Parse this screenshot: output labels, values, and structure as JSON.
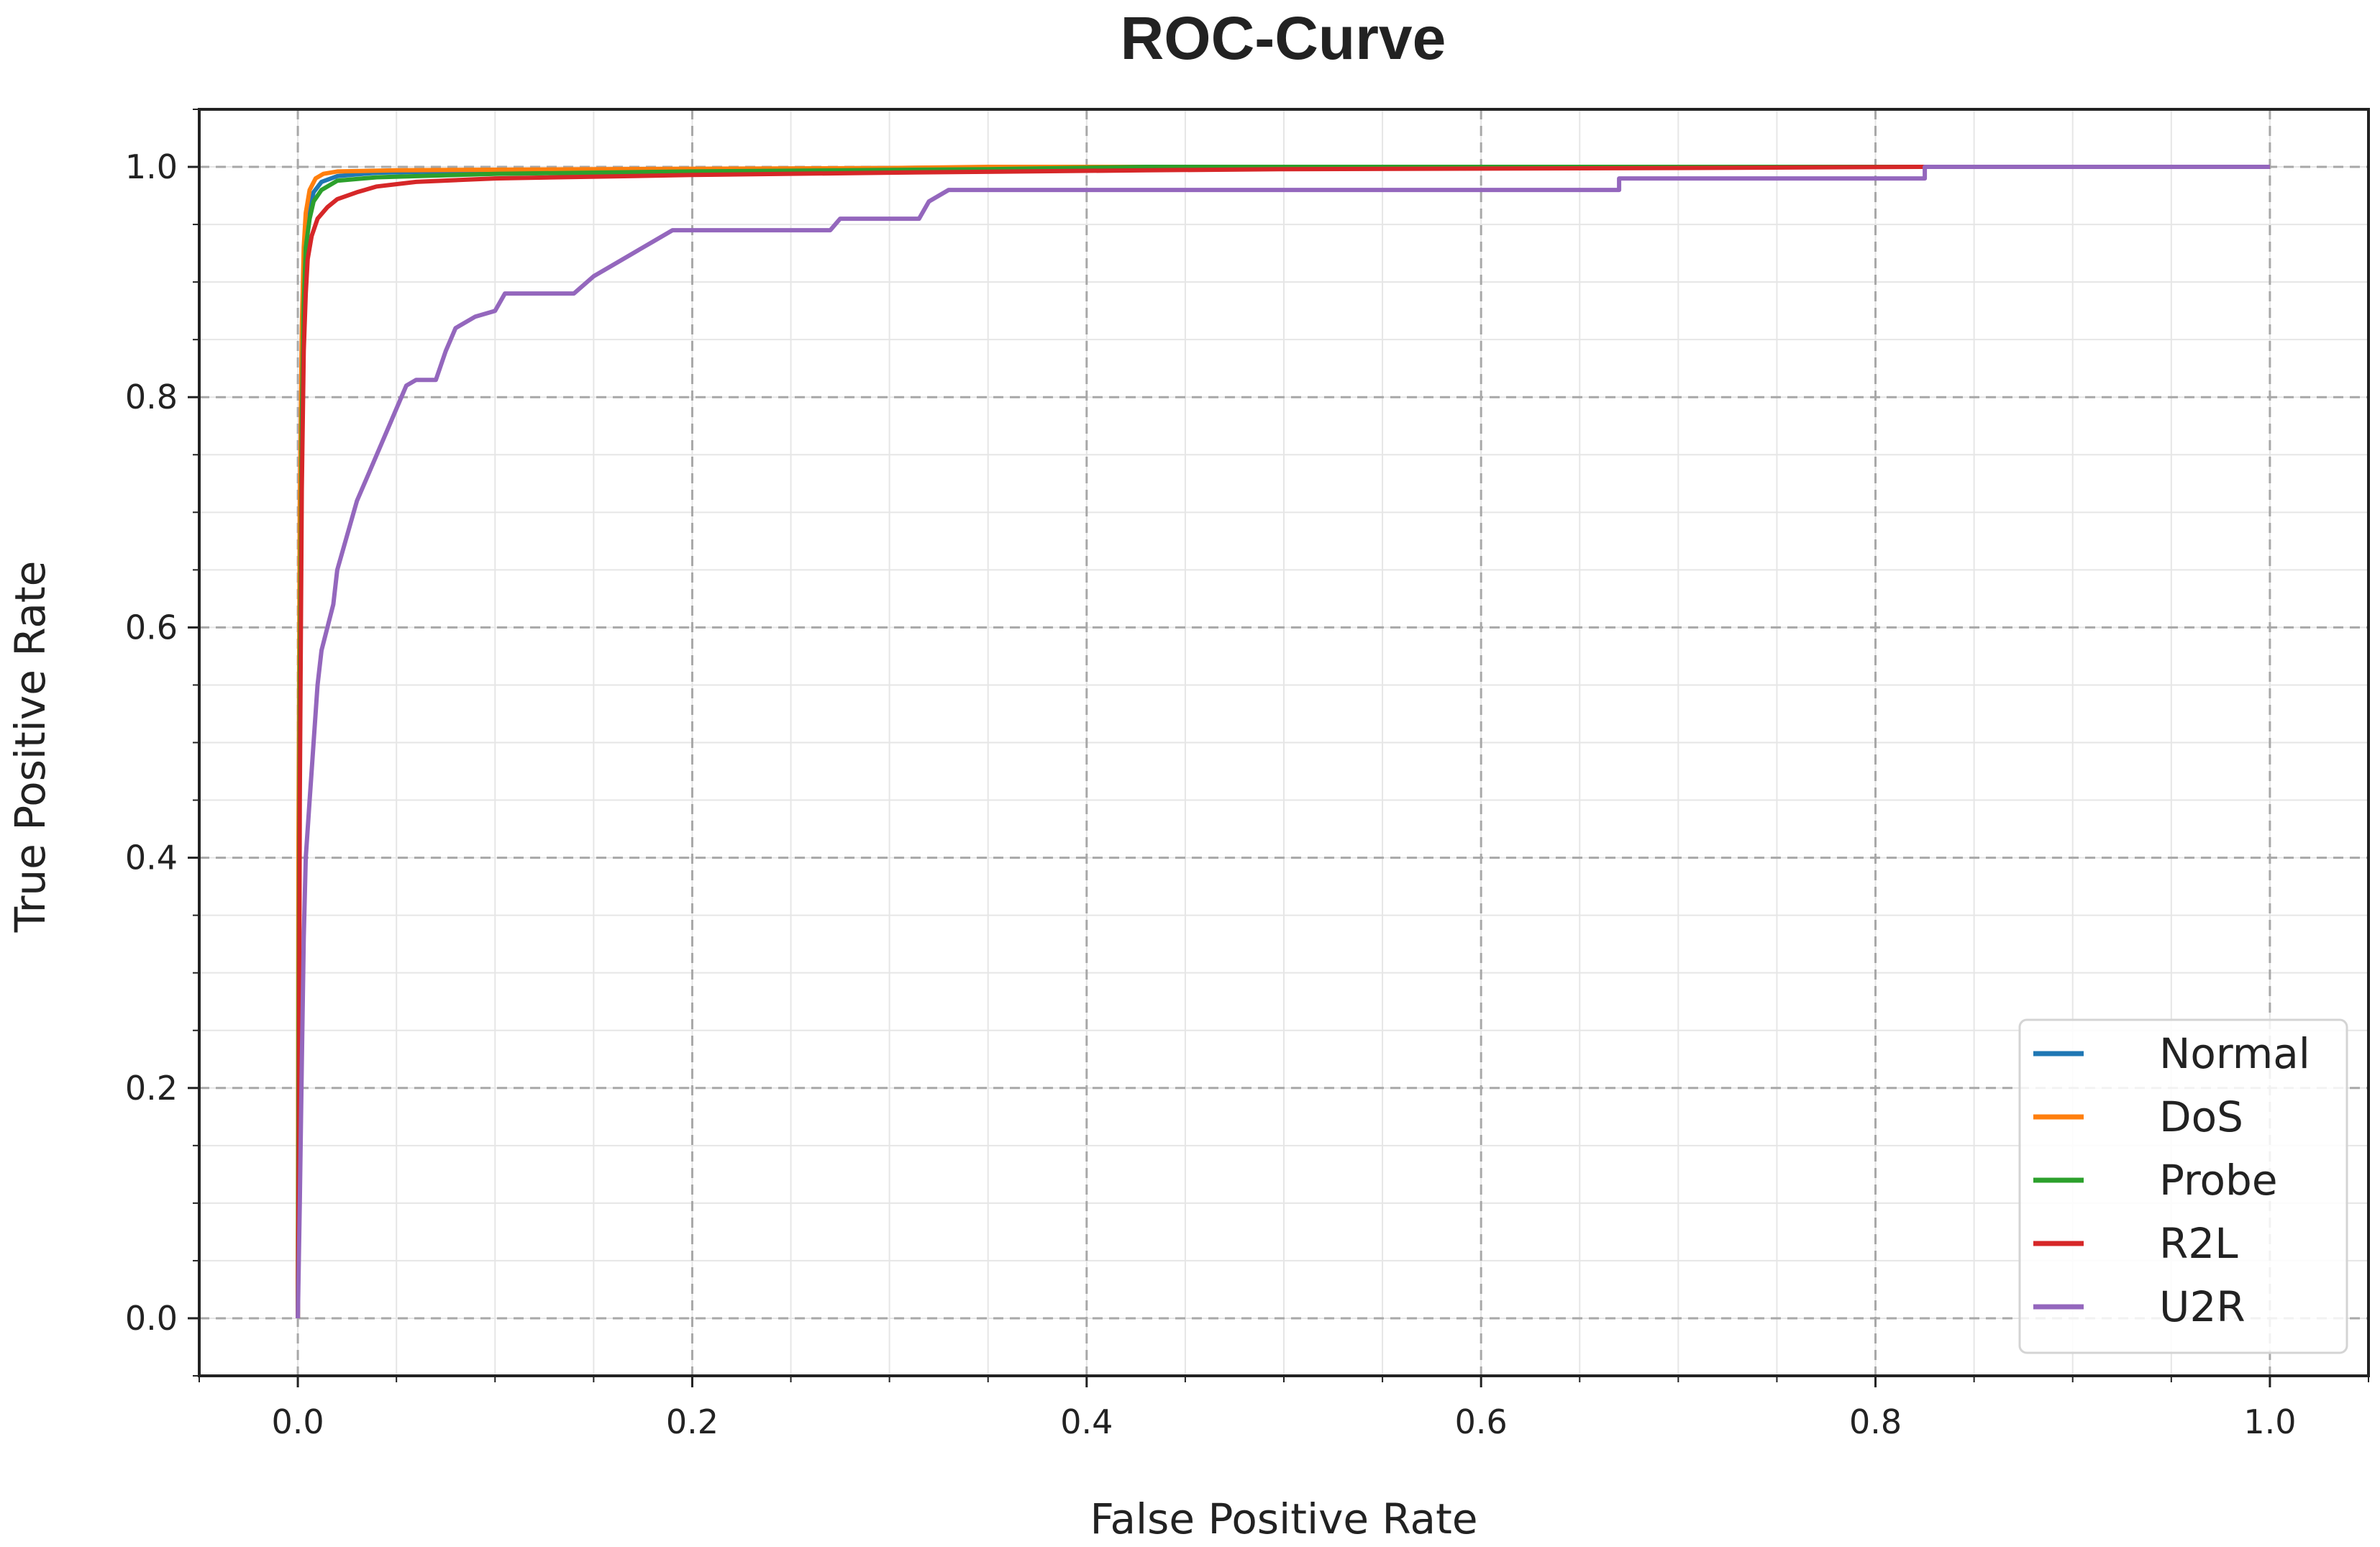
{
  "chart_data": {
    "type": "line",
    "title": "ROC-Curve",
    "xlabel": "False Positive Rate",
    "ylabel": "True Positive Rate",
    "xlim": [
      -0.05,
      1.05
    ],
    "ylim": [
      -0.05,
      1.05
    ],
    "xticks": [
      0.0,
      0.2,
      0.4,
      0.6,
      0.8,
      1.0
    ],
    "xtick_labels": [
      "0.0",
      "0.2",
      "0.4",
      "0.6",
      "0.8",
      "1.0"
    ],
    "yticks": [
      0.0,
      0.2,
      0.4,
      0.6,
      0.8,
      1.0
    ],
    "ytick_labels": [
      "0.0",
      "0.2",
      "0.4",
      "0.6",
      "0.8",
      "1.0"
    ],
    "grid": true,
    "legend_position": "lower-right",
    "series": [
      {
        "name": "Normal",
        "color": "#1f77b4",
        "x": [
          0.0,
          0.0005,
          0.001,
          0.002,
          0.003,
          0.004,
          0.006,
          0.008,
          0.012,
          0.02,
          0.04,
          0.1,
          0.2,
          0.3,
          0.4,
          1.0
        ],
        "y": [
          0.0,
          0.3,
          0.6,
          0.82,
          0.9,
          0.94,
          0.965,
          0.978,
          0.987,
          0.992,
          0.995,
          0.997,
          0.998,
          0.999,
          1.0,
          1.0
        ]
      },
      {
        "name": "DoS",
        "color": "#ff7f0e",
        "x": [
          0.0,
          0.0003,
          0.001,
          0.002,
          0.003,
          0.004,
          0.006,
          0.009,
          0.013,
          0.02,
          0.05,
          0.15,
          0.3,
          0.35,
          1.0
        ],
        "y": [
          0.0,
          0.4,
          0.7,
          0.86,
          0.93,
          0.96,
          0.98,
          0.99,
          0.994,
          0.996,
          0.997,
          0.998,
          0.999,
          1.0,
          1.0
        ]
      },
      {
        "name": "Probe",
        "color": "#2ca02c",
        "x": [
          0.0,
          0.0005,
          0.001,
          0.002,
          0.003,
          0.004,
          0.006,
          0.008,
          0.012,
          0.02,
          0.04,
          0.1,
          0.2,
          0.35,
          0.43,
          1.0
        ],
        "y": [
          0.0,
          0.3,
          0.55,
          0.78,
          0.88,
          0.93,
          0.955,
          0.97,
          0.98,
          0.988,
          0.991,
          0.994,
          0.996,
          0.998,
          1.0,
          1.0
        ]
      },
      {
        "name": "R2L",
        "color": "#d62728",
        "x": [
          0.0,
          0.0005,
          0.001,
          0.002,
          0.003,
          0.004,
          0.005,
          0.007,
          0.01,
          0.015,
          0.02,
          0.03,
          0.04,
          0.06,
          0.1,
          0.2,
          0.3,
          0.43,
          0.5,
          0.7,
          0.825,
          1.0
        ],
        "y": [
          0.0,
          0.15,
          0.45,
          0.72,
          0.84,
          0.89,
          0.92,
          0.94,
          0.955,
          0.965,
          0.972,
          0.978,
          0.983,
          0.987,
          0.99,
          0.993,
          0.995,
          0.997,
          0.998,
          0.999,
          1.0,
          1.0
        ]
      },
      {
        "name": "U2R",
        "color": "#9467bd",
        "x": [
          0.0,
          0.001,
          0.002,
          0.003,
          0.004,
          0.006,
          0.008,
          0.01,
          0.012,
          0.015,
          0.018,
          0.02,
          0.025,
          0.03,
          0.035,
          0.04,
          0.045,
          0.05,
          0.055,
          0.06,
          0.07,
          0.075,
          0.08,
          0.09,
          0.1,
          0.105,
          0.12,
          0.14,
          0.15,
          0.155,
          0.17,
          0.18,
          0.19,
          0.2,
          0.27,
          0.275,
          0.315,
          0.32,
          0.33,
          0.67,
          0.67,
          0.825,
          0.825,
          1.0
        ],
        "y": [
          0.0,
          0.1,
          0.22,
          0.33,
          0.4,
          0.45,
          0.5,
          0.55,
          0.58,
          0.6,
          0.62,
          0.65,
          0.68,
          0.71,
          0.73,
          0.75,
          0.77,
          0.79,
          0.81,
          0.815,
          0.815,
          0.84,
          0.86,
          0.87,
          0.875,
          0.89,
          0.89,
          0.89,
          0.905,
          0.91,
          0.925,
          0.935,
          0.945,
          0.945,
          0.945,
          0.955,
          0.955,
          0.97,
          0.98,
          0.98,
          0.99,
          0.99,
          1.0,
          1.0
        ]
      }
    ]
  }
}
